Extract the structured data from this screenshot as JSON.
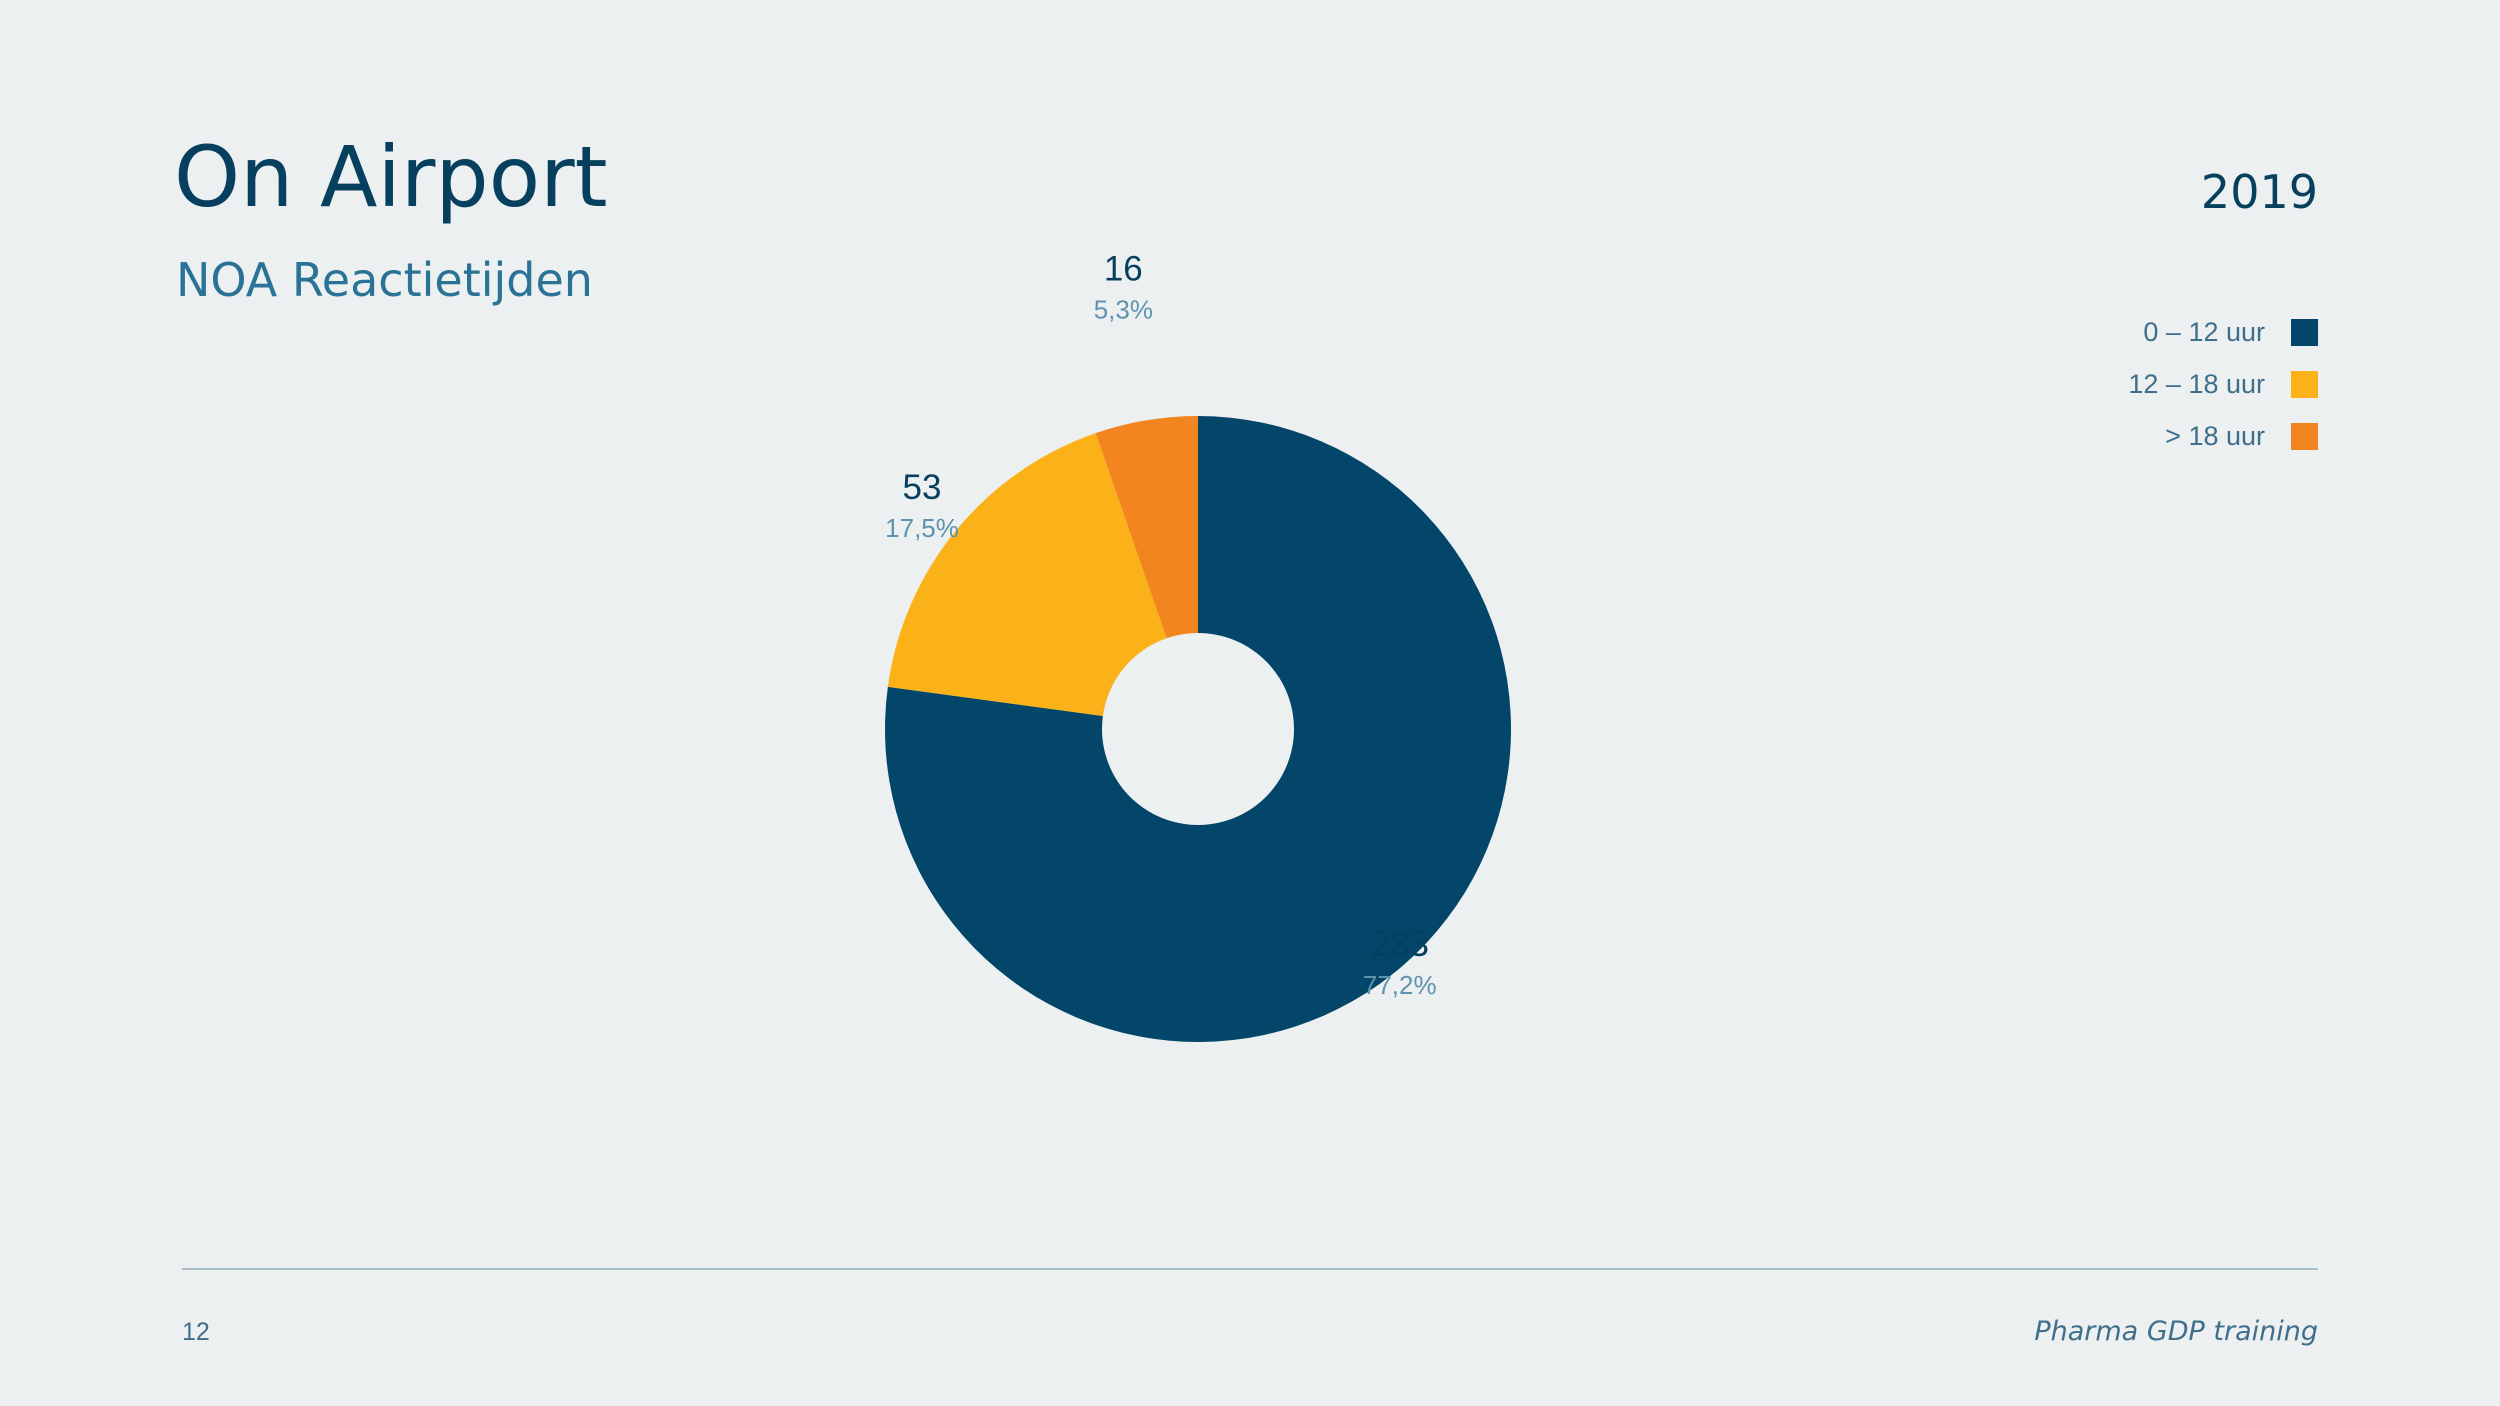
{
  "slide": {
    "title": "On Airport",
    "subtitle": "NOA Reactietijden",
    "year": "2019",
    "page_number": "12",
    "footer_text": "Pharma GDP training"
  },
  "chart_data": {
    "type": "pie",
    "donut": true,
    "title": "",
    "legend_position": "top-right",
    "slices": [
      {
        "label": "0 – 12 uur",
        "value": 233,
        "percent_label": "77,2%",
        "color": "#03466a"
      },
      {
        "label": "12 – 18 uur",
        "value": 53,
        "percent_label": "17,5%",
        "color": "#fbb218"
      },
      {
        "label": "> 18 uur",
        "value": 16,
        "percent_label": "5,3%",
        "color": "#f2851f"
      }
    ]
  }
}
